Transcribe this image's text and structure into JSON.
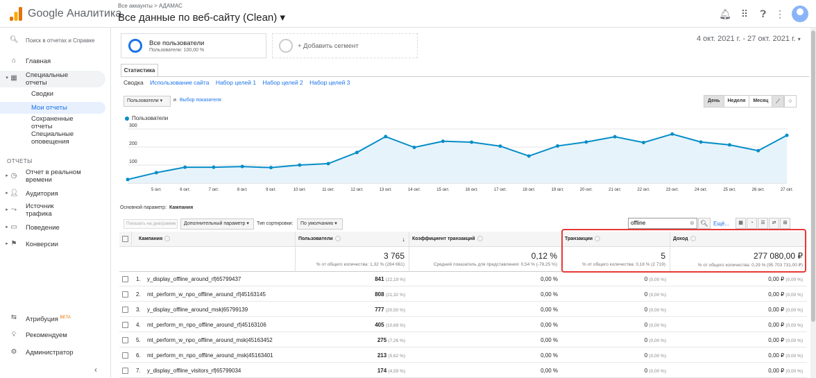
{
  "header": {
    "app_name": "Google Аналитика",
    "breadcrumb": "Все аккаунты > АДАМАС",
    "property_view": "Все данные по веб-сайту (Clean)",
    "icons": [
      "bell-icon",
      "apps-icon",
      "help-icon",
      "more-vert-icon",
      "account-avatar"
    ]
  },
  "sidebar": {
    "search_label": "Поиск в отчетах и Справке",
    "home_label": "Главная",
    "special_reports_label": "Специальные отчеты",
    "sub_items": [
      "Сводки",
      "Мои отчеты",
      "Сохраненные отчеты",
      "Специальные оповещения"
    ],
    "section_label": "ОТЧЕТЫ",
    "reports": [
      "Отчет в реальном времени",
      "Аудитория",
      "Источник трафика",
      "Поведение",
      "Конверсии"
    ],
    "bottom": {
      "attribution_label": "Атрибуция",
      "attribution_badge": "BETA",
      "recommended_label": "Рекомендуем",
      "admin_label": "Администратор"
    }
  },
  "segments": {
    "active_title": "Все пользователи",
    "active_sub": "Пользователи: 100,00 %",
    "add_label": "+ Добавить сегмент"
  },
  "date_range": "4 окт. 2021 г. - 27 окт. 2021 г.",
  "tabs": {
    "main_tab": "Статистика",
    "subtabs": [
      "Сводка",
      "Использование сайта",
      "Набор целей 1",
      "Набор целей 2",
      "Набор целей 3"
    ]
  },
  "chart_controls": {
    "metric": "Пользователи",
    "and_label": "и",
    "choose_metric": "Выбор показателя",
    "periods": [
      "День",
      "Неделя",
      "Месяц"
    ],
    "selected_period": "День"
  },
  "chart_data": {
    "type": "area",
    "legend": [
      "Пользователи"
    ],
    "color": "#058dc7",
    "ylim": [
      0,
      300
    ],
    "yticks": [
      100,
      200,
      300
    ],
    "x": [
      "4 окт.",
      "5 окт.",
      "6 окт.",
      "7 окт.",
      "8 окт.",
      "9 окт.",
      "10 окт.",
      "11 окт.",
      "12 окт.",
      "13 окт.",
      "14 окт.",
      "15 окт.",
      "16 окт.",
      "17 окт.",
      "18 окт.",
      "19 окт.",
      "20 окт.",
      "21 окт.",
      "22 окт.",
      "23 окт.",
      "24 окт.",
      "25 окт.",
      "26 окт.",
      "27 окт."
    ],
    "xtick_labels": [
      "5 окт.",
      "6 окт.",
      "7 окт.",
      "8 окт.",
      "9 окт.",
      "10 окт.",
      "11 окт.",
      "12 окт.",
      "13 окт.",
      "14 окт.",
      "15 окт.",
      "16 окт.",
      "17 окт.",
      "18 окт.",
      "19 окт.",
      "20 окт.",
      "21 окт.",
      "22 окт.",
      "23 окт.",
      "24 окт.",
      "25 окт.",
      "26 окт.",
      "27 окт."
    ],
    "series": [
      {
        "name": "Пользователи",
        "values": [
          20,
          58,
          88,
          88,
          92,
          86,
          100,
          108,
          170,
          258,
          198,
          232,
          227,
          205,
          150,
          206,
          228,
          257,
          225,
          272,
          228,
          212,
          180,
          265
        ]
      }
    ]
  },
  "table_controls": {
    "primary_dim_label": "Основной параметр:",
    "primary_dim_value": "Кампания",
    "show_on_chart": "Показать на диаграмме",
    "secondary_dim": "Дополнительный параметр",
    "sort_label": "Тип сортировки:",
    "sort_value": "По умолчанию",
    "filter_value": "offline",
    "more_label": "Ещё..."
  },
  "table": {
    "headers": [
      "Кампания",
      "Пользователи",
      "Коэффициент транзакций",
      "Транзакции",
      "Доход"
    ],
    "totals": {
      "users": "3 765",
      "users_sub": "% от общего количества: 1,32 % (284 661)",
      "rate": "0,12 %",
      "rate_sub": "Средний показатель для представления: 0,54 % (-78,25 %)",
      "transactions": "5",
      "transactions_sub": "% от общего количества: 0,18 % (2 719)",
      "revenue": "277 080,00 ₽",
      "revenue_sub": "% от общего количества: 0,29 % (95 703 731,00 ₽)"
    },
    "rows": [
      {
        "num": "1.",
        "campaign": "y_display_offline_around_rf|65799437",
        "users": "841",
        "users_pct": "(22,19 %)",
        "rate": "0,00 %",
        "tx": "0",
        "tx_pct": "(0,00 %)",
        "rev": "0,00 ₽",
        "rev_pct": "(0,00 %)"
      },
      {
        "num": "2.",
        "campaign": "mt_perform_w_npo_offline_around_rf|45163145",
        "users": "808",
        "users_pct": "(21,32 %)",
        "rate": "0,00 %",
        "tx": "0",
        "tx_pct": "(0,00 %)",
        "rev": "0,00 ₽",
        "rev_pct": "(0,00 %)"
      },
      {
        "num": "3.",
        "campaign": "y_display_offline_around_msk|65799139",
        "users": "777",
        "users_pct": "(20,50 %)",
        "rate": "0,00 %",
        "tx": "0",
        "tx_pct": "(0,00 %)",
        "rev": "0,00 ₽",
        "rev_pct": "(0,00 %)"
      },
      {
        "num": "4.",
        "campaign": "mt_perform_m_npo_offline_around_rf|45163106",
        "users": "405",
        "users_pct": "(10,69 %)",
        "rate": "0,00 %",
        "tx": "0",
        "tx_pct": "(0,00 %)",
        "rev": "0,00 ₽",
        "rev_pct": "(0,00 %)"
      },
      {
        "num": "5.",
        "campaign": "mt_perform_w_npo_offline_around_msk|45163452",
        "users": "275",
        "users_pct": "(7,26 %)",
        "rate": "0,00 %",
        "tx": "0",
        "tx_pct": "(0,00 %)",
        "rev": "0,00 ₽",
        "rev_pct": "(0,00 %)"
      },
      {
        "num": "6.",
        "campaign": "mt_perform_m_npo_offline_around_msk|45163401",
        "users": "213",
        "users_pct": "(5,62 %)",
        "rate": "0,00 %",
        "tx": "0",
        "tx_pct": "(0,00 %)",
        "rev": "0,00 ₽",
        "rev_pct": "(0,00 %)"
      },
      {
        "num": "7.",
        "campaign": "y_display_offline_visitors_rf|65799034",
        "users": "174",
        "users_pct": "(4,59 %)",
        "rate": "0,00 %",
        "tx": "0",
        "tx_pct": "(0,00 %)",
        "rev": "0,00 ₽",
        "rev_pct": "(0,00 %)"
      }
    ]
  }
}
